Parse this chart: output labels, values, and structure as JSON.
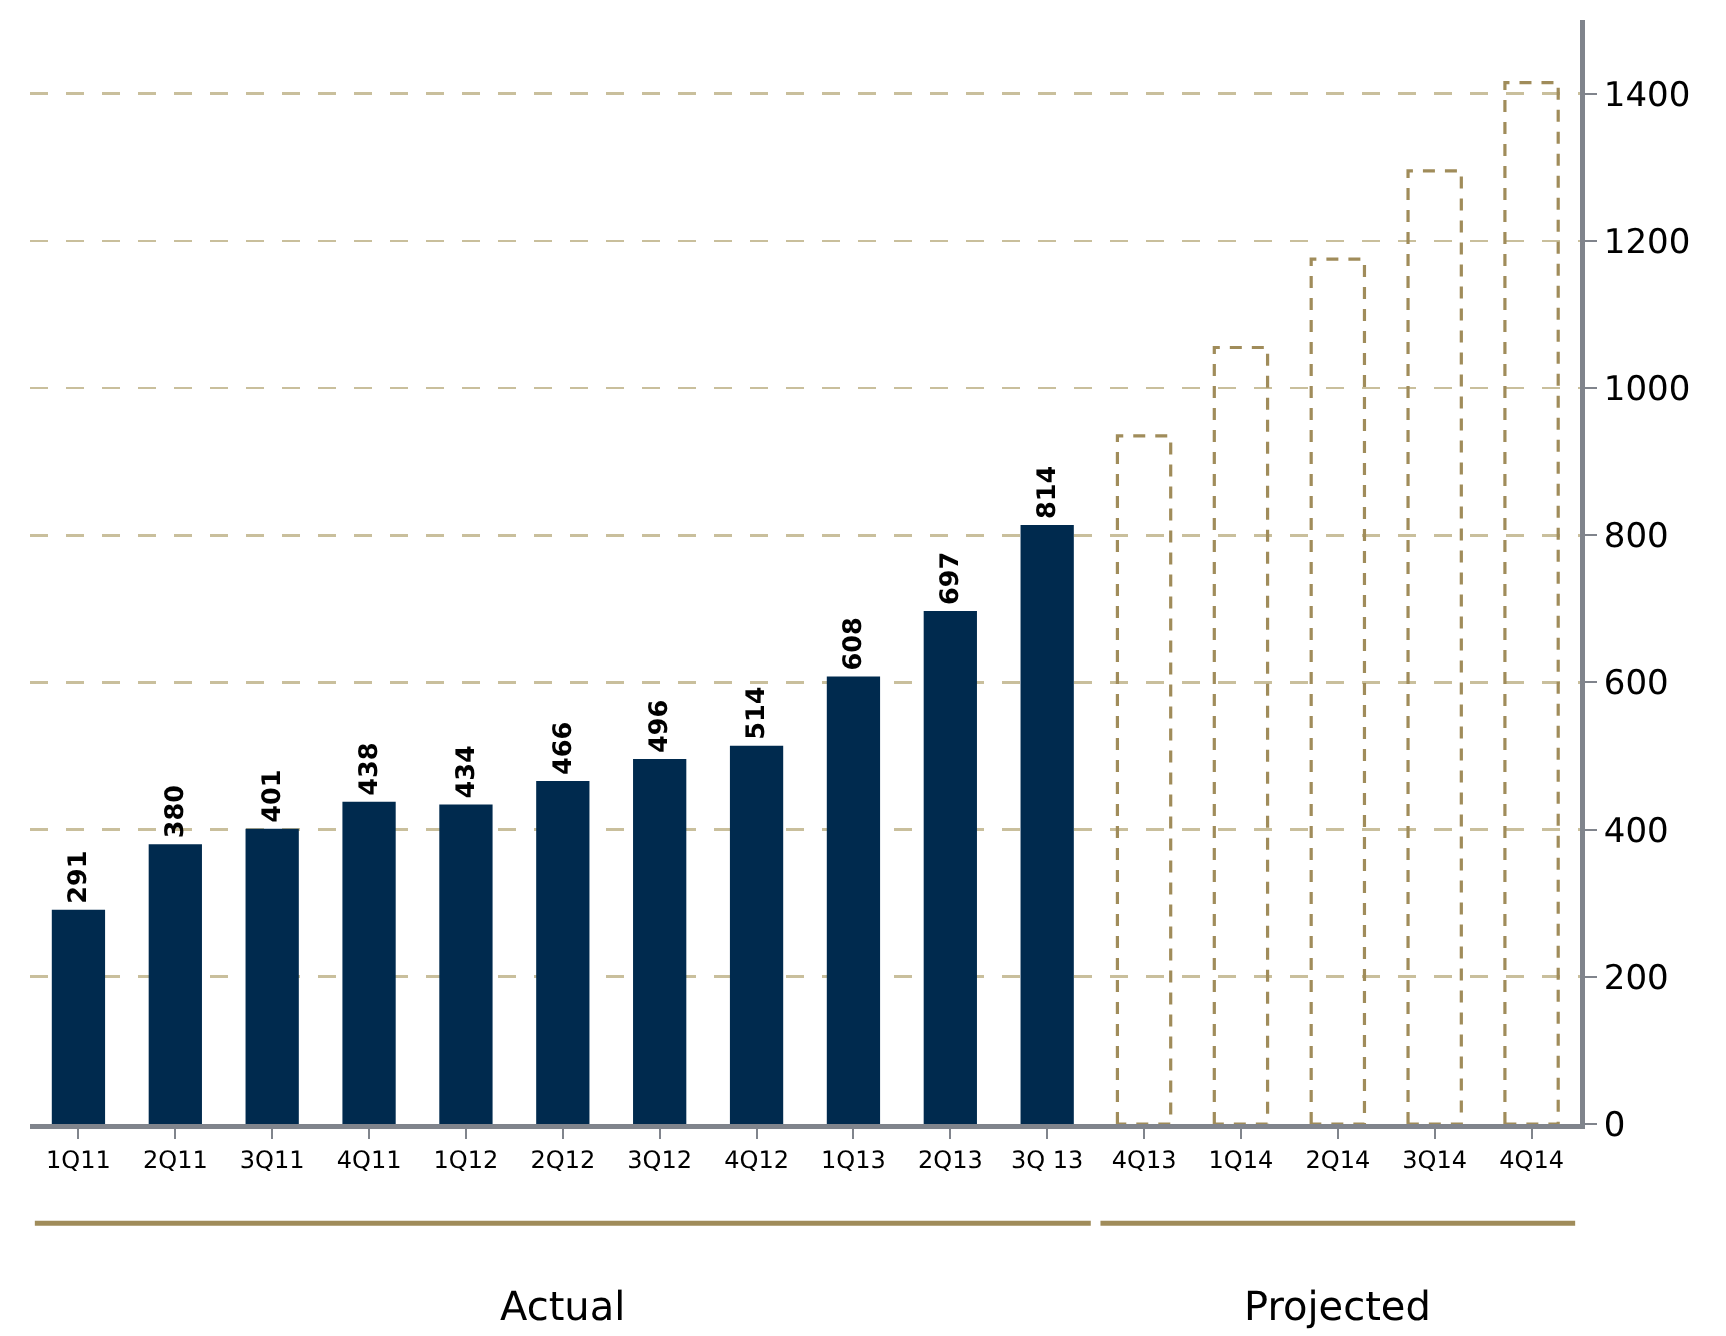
{
  "chart_data": {
    "type": "bar",
    "categories": [
      "1Q11",
      "2Q11",
      "3Q11",
      "4Q11",
      "1Q12",
      "2Q12",
      "3Q12",
      "4Q12",
      "1Q13",
      "2Q13",
      "3Q 13",
      "4Q13",
      "1Q14",
      "2Q14",
      "3Q14",
      "4Q14"
    ],
    "series": [
      {
        "color": "#002a4e",
        "values": [
          291,
          380,
          401,
          438,
          434,
          466,
          496,
          514,
          608,
          697,
          814,
          null,
          null,
          null,
          null,
          null
        ],
        "value_labels": [
          "291",
          "380",
          "401",
          "438",
          "434",
          "466",
          "496",
          "514",
          "608",
          "697",
          "814",
          null,
          null,
          null,
          null,
          null
        ]
      },
      {
        "color": "#a08c5a",
        "line_style": "dashed",
        "values": [
          null,
          null,
          null,
          null,
          null,
          null,
          null,
          null,
          null,
          null,
          null,
          935,
          1055,
          1175,
          1295,
          1415
        ]
      }
    ],
    "annotations": [
      "Actual",
      "Projected"
    ],
    "ylim": [
      0,
      1500
    ],
    "yticks": [
      0,
      200,
      400,
      600,
      800,
      1000,
      1200,
      1400
    ],
    "grid": "y"
  }
}
